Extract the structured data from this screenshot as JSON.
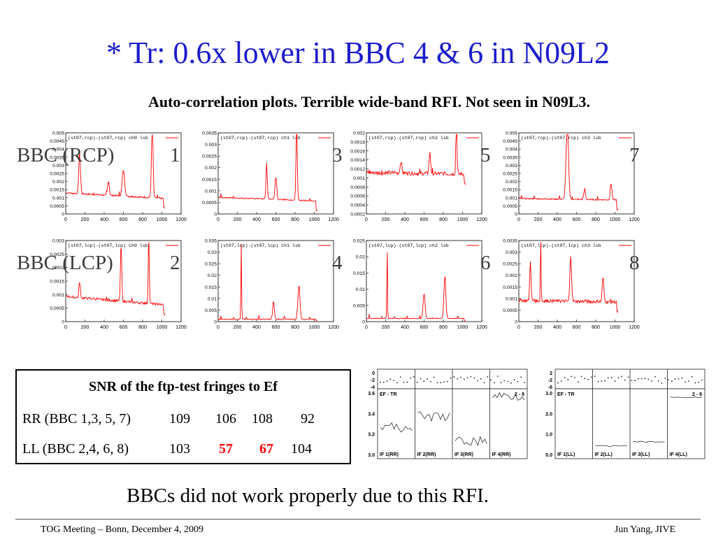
{
  "title": "* Tr: 0.6x lower in BBC 4 & 6 in N09L2",
  "subtitle": "Auto-correlation plots. Terrible wide-band RFI. Not seen in N09L3.",
  "row_labels": {
    "rcp": "BBC (RCP)",
    "lcp": "BBC (LCP)"
  },
  "bbc_numbers": [
    "1",
    "3",
    "5",
    "7",
    "2",
    "4",
    "6",
    "8"
  ],
  "plots": [
    {
      "legend": "(st07,rcp)-(st07,rcp) ch0 lsb",
      "yticks": [
        "0.005",
        "0.0045",
        "0.004",
        "0.0035",
        "0.003",
        "0.0025",
        "0.002",
        "0.0015",
        "0.001",
        "0.0005",
        "0"
      ],
      "xticks": [
        "0",
        "200",
        "400",
        "600",
        "800",
        "1000",
        "1200"
      ]
    },
    {
      "legend": "(st07,rcp)-(st07,rcp) ch1 lsb",
      "yticks": [
        "0.0035",
        "0.003",
        "0.0025",
        "0.002",
        "0.0015",
        "0.001",
        "0.0005",
        "0"
      ],
      "xticks": [
        "0",
        "200",
        "400",
        "600",
        "800",
        "1000",
        "1200"
      ]
    },
    {
      "legend": "(st07,rcp)-(st07,rcp) ch2 lsb",
      "yticks": [
        "0.002",
        "0.0018",
        "0.0016",
        "0.0014",
        "0.0012",
        "0.001",
        "0.0008",
        "0.0006",
        "0.0004",
        "0.0002"
      ],
      "xticks": [
        "0",
        "200",
        "400",
        "600",
        "800",
        "1000",
        "1200"
      ]
    },
    {
      "legend": "(st07,rcp)-(st07,rcp) ch3 lsb",
      "yticks": [
        "0.005",
        "0.0045",
        "0.004",
        "0.0035",
        "0.003",
        "0.0025",
        "0.002",
        "0.0015",
        "0.001",
        "0.0005",
        "0"
      ],
      "xticks": [
        "0",
        "200",
        "400",
        "600",
        "800",
        "1000",
        "1200"
      ]
    },
    {
      "legend": "(st07,lcp)-(st07,lcp) ch0 lsb",
      "yticks": [
        "0.003",
        "0.0025",
        "0.002",
        "0.0015",
        "0.001",
        "0.0005",
        "0"
      ],
      "xticks": [
        "0",
        "200",
        "400",
        "600",
        "800",
        "1000",
        "1200"
      ]
    },
    {
      "legend": "(st07,lcp)-(st07,lcp) ch1 lsb",
      "yticks": [
        "0.035",
        "0.03",
        "0.025",
        "0.02",
        "0.015",
        "0.01",
        "0.005",
        "0"
      ],
      "xticks": [
        "0",
        "200",
        "400",
        "600",
        "800",
        "1000",
        "1200"
      ]
    },
    {
      "legend": "(st07,lcp)-(st07,lcp) ch2 lsb",
      "yticks": [
        "0.025",
        "0.02",
        "0.015",
        "0.01",
        "0.005",
        "0"
      ],
      "xticks": [
        "0",
        "200",
        "400",
        "600",
        "800",
        "1000",
        "1200"
      ]
    },
    {
      "legend": "(st07,lcp)-(st07,lcp) ch3 lsb",
      "yticks": [
        "0.0035",
        "0.003",
        "0.0025",
        "0.002",
        "0.0015",
        "0.001",
        "0.0005",
        "0"
      ],
      "xticks": [
        "0",
        "200",
        "400",
        "600",
        "800",
        "1000",
        "1200"
      ]
    }
  ],
  "snr_table": {
    "title": "SNR of the ftp-test fringes to Ef",
    "rows": [
      {
        "label": "RR (BBC 1,3, 5, 7)",
        "values": [
          "109",
          "106",
          "108",
          "92"
        ],
        "highlight": [
          false,
          false,
          false,
          false
        ]
      },
      {
        "label": "LL (BBC 2,4, 6, 8)",
        "values": [
          "103",
          "57",
          "67",
          "104"
        ],
        "highlight": [
          false,
          true,
          true,
          false
        ]
      }
    ]
  },
  "fringe_panels": [
    {
      "left_label": "EF - TR",
      "right_label": "2 - 8",
      "bottom_labels": [
        "IF 1(RR)",
        "IF 2(RR)",
        "IF 3(RR)",
        "IF 4(RR)"
      ],
      "top_ticks": [
        "0",
        "-2",
        "-4"
      ],
      "y_ticks": [
        "3.6",
        "3.4",
        "3.2",
        "3.0"
      ]
    },
    {
      "left_label": "EF - TR",
      "right_label": "2 - 8",
      "bottom_labels": [
        "IF 1(LL)",
        "IF 2(LL)",
        "IF 3(LL)",
        "IF 4(LL)"
      ],
      "top_ticks": [
        "2",
        "-2",
        "-6"
      ],
      "y_ticks": [
        "3.0",
        "2.0",
        "1.0",
        "0.0"
      ]
    }
  ],
  "conclusion": "BBCs did not work properly due to this RFI.",
  "footer": {
    "left": "TOG Meeting – Bonn, December 4, 2009",
    "right": "Jun Yang, JIVE"
  },
  "colors": {
    "title": "#1c1ccc",
    "trace": "#ff0000",
    "highlight": "#ff0000"
  }
}
